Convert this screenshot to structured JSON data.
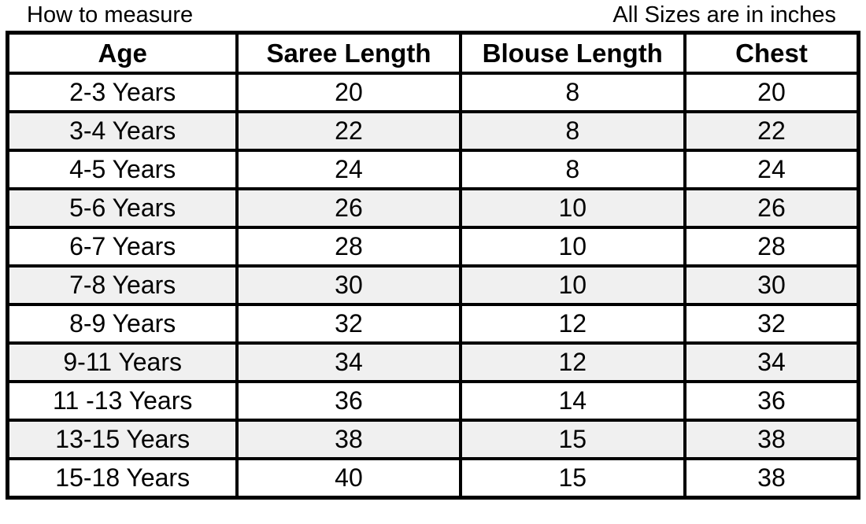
{
  "titles": {
    "left": "How to measure",
    "right": "All Sizes are in inches"
  },
  "chart_data": {
    "type": "table",
    "title": "How to measure",
    "units_note": "All Sizes are in inches",
    "columns": [
      "Age",
      "Saree Length",
      "Blouse Length",
      "Chest"
    ],
    "rows": [
      [
        "2-3 Years",
        "20",
        "8",
        "20"
      ],
      [
        "3-4 Years",
        "22",
        "8",
        "22"
      ],
      [
        "4-5 Years",
        "24",
        "8",
        "24"
      ],
      [
        "5-6 Years",
        "26",
        "10",
        "26"
      ],
      [
        "6-7 Years",
        "28",
        "10",
        "28"
      ],
      [
        "7-8 Years",
        "30",
        "10",
        "30"
      ],
      [
        "8-9 Years",
        "32",
        "12",
        "32"
      ],
      [
        "9-11 Years",
        "34",
        "12",
        "34"
      ],
      [
        "11 -13 Years",
        "36",
        "14",
        "36"
      ],
      [
        "13-15 Years",
        "38",
        "15",
        "38"
      ],
      [
        "15-18 Years",
        "40",
        "15",
        "38"
      ]
    ],
    "layout": {
      "stripe": "alternating data rows, second row shaded",
      "grid": "heavy black cell borders",
      "column_widths_pct": [
        27.0,
        26.2,
        26.4,
        20.4
      ]
    }
  },
  "colors": {
    "border": "#000000",
    "stripe": "#f0f0f0",
    "background": "#ffffff",
    "text": "#000000"
  }
}
